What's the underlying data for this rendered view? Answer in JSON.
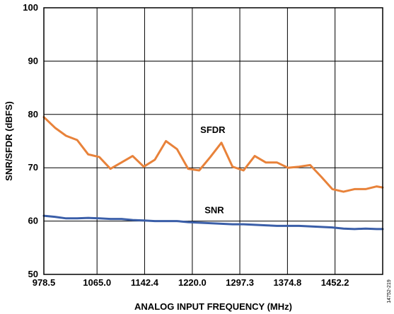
{
  "chart_data": {
    "type": "line",
    "xlabel": "ANALOG INPUT FREQUENCY (MHz)",
    "ylabel": "SNR/SFDR (dBFS)",
    "xlim": [
      978.5,
      1529.7
    ],
    "ylim": [
      50,
      100
    ],
    "xticks": [
      978.5,
      1065.0,
      1142.4,
      1220.0,
      1297.3,
      1374.8,
      1452.2
    ],
    "xtick_labels": [
      "978.5",
      "1065.0",
      "1142.4",
      "1220.0",
      "1297.3",
      "1374.8",
      "1452.2"
    ],
    "yticks": [
      50,
      60,
      70,
      80,
      90,
      100
    ],
    "ytick_labels": [
      "50",
      "60",
      "70",
      "80",
      "90",
      "100"
    ],
    "grid": true,
    "series": [
      {
        "name": "SFDR",
        "color": "#e8823a",
        "x": [
          978.5,
          996.6,
          1014.6,
          1032.7,
          1050.7,
          1068.8,
          1086.8,
          1104.9,
          1122.9,
          1141.0,
          1159.0,
          1177.1,
          1195.1,
          1213.2,
          1231.2,
          1249.3,
          1267.3,
          1285.4,
          1303.4,
          1321.5,
          1339.5,
          1357.6,
          1375.6,
          1393.7,
          1411.7,
          1429.8,
          1447.8,
          1465.9,
          1483.9,
          1502.0,
          1520.0,
          1529.7
        ],
        "values": [
          79.5,
          77.5,
          76.0,
          75.2,
          72.5,
          72.0,
          69.8,
          71.0,
          72.2,
          70.2,
          71.5,
          75.0,
          73.5,
          69.8,
          69.5,
          72.0,
          74.7,
          70.2,
          69.5,
          72.2,
          71.0,
          71.0,
          70.0,
          70.2,
          70.5,
          68.3,
          66.0,
          65.5,
          66.0,
          66.0,
          66.5,
          66.3
        ]
      },
      {
        "name": "SNR",
        "color": "#3a5ea8",
        "x": [
          978.5,
          996.6,
          1014.6,
          1032.7,
          1050.7,
          1068.8,
          1086.8,
          1104.9,
          1122.9,
          1141.0,
          1159.0,
          1177.1,
          1195.1,
          1213.2,
          1231.2,
          1249.3,
          1267.3,
          1285.4,
          1303.4,
          1321.5,
          1339.5,
          1357.6,
          1375.6,
          1393.7,
          1411.7,
          1429.8,
          1447.8,
          1465.9,
          1483.9,
          1502.0,
          1520.0,
          1529.7
        ],
        "values": [
          61.0,
          60.8,
          60.5,
          60.5,
          60.6,
          60.5,
          60.4,
          60.4,
          60.2,
          60.1,
          60.0,
          60.0,
          60.0,
          59.8,
          59.7,
          59.6,
          59.5,
          59.4,
          59.4,
          59.3,
          59.2,
          59.1,
          59.1,
          59.1,
          59.0,
          58.9,
          58.8,
          58.6,
          58.5,
          58.6,
          58.5,
          58.5
        ]
      }
    ],
    "annotations": [
      {
        "text": "SFDR",
        "x": 1233.0,
        "y": 76.5
      },
      {
        "text": "SNR",
        "x": 1240.0,
        "y": 61.5
      }
    ],
    "figure_id": "14752-219"
  }
}
